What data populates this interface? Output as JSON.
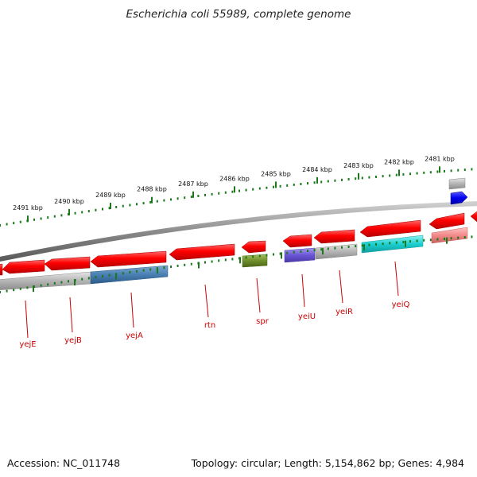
{
  "title": "Escherichia coli 55989, complete genome",
  "footer": {
    "accession": "Accession: NC_011748",
    "stats": "Topology: circular; Length: 5,154,862 bp; Genes: 4,984"
  },
  "scale": {
    "unit": "kbp",
    "ticks": [
      2491,
      2490,
      2489,
      2488,
      2487,
      2486,
      2485,
      2484,
      2483,
      2482,
      2481
    ]
  },
  "genes": [
    {
      "name": "yejE"
    },
    {
      "name": "yejB"
    },
    {
      "name": "yejA"
    },
    {
      "name": "rtn"
    },
    {
      "name": "spr"
    },
    {
      "name": "yeiU"
    },
    {
      "name": "yeiR"
    },
    {
      "name": "yeiQ"
    }
  ],
  "colors": {
    "cds": "#ff0000",
    "gene": "#b0b0b0",
    "backbone": "#888888",
    "ticks": "#1a7a1a",
    "label": "#cc0000"
  }
}
